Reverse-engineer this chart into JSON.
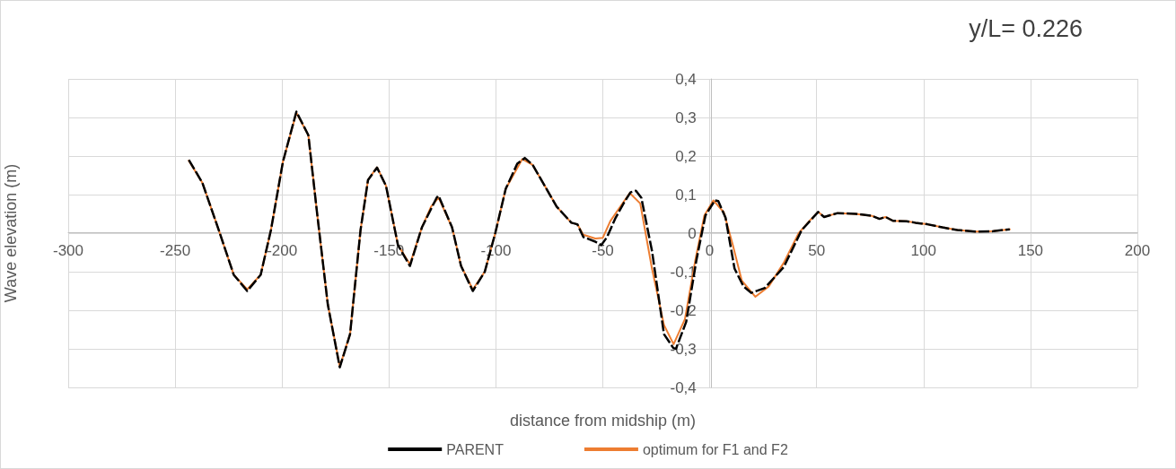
{
  "chart_data": {
    "type": "line",
    "title": "y/L= 0.226",
    "xlabel": "distance from midship (m)",
    "ylabel": "Wave elevation (m)",
    "xlim": [
      -300,
      200
    ],
    "xticks": [
      -300,
      -250,
      -200,
      -150,
      -100,
      -50,
      0,
      50,
      100,
      150,
      200
    ],
    "ylim": [
      -0.4,
      0.4
    ],
    "yticks": [
      {
        "value": -0.4,
        "label": "-0,4"
      },
      {
        "value": -0.3,
        "label": "-0,3"
      },
      {
        "value": -0.2,
        "label": "-0,2"
      },
      {
        "value": -0.1,
        "label": "-0,1"
      },
      {
        "value": 0,
        "label": "0"
      },
      {
        "value": 0.1,
        "label": "0,1"
      },
      {
        "value": 0.2,
        "label": "0,2"
      },
      {
        "value": 0.3,
        "label": "0,3"
      },
      {
        "value": 0.4,
        "label": "0,4"
      }
    ],
    "grid": true,
    "legend": "bottom",
    "marker": "none",
    "series": [
      {
        "name": "PARENT",
        "color": "#000000",
        "line_style": "dashed",
        "x": [
          -243.6,
          -237.3,
          -229.6,
          -222.6,
          -216.3,
          -210,
          -205.2,
          -199.6,
          -193.3,
          -187.7,
          -183.5,
          -178.6,
          -173,
          -168.2,
          -163.3,
          -159.8,
          -155.6,
          -151.4,
          -145.8,
          -140.2,
          -134.6,
          -127.7,
          -126.8,
          -120.5,
          -116.3,
          -110.8,
          -105.2,
          -100.3,
          -95.4,
          -90,
          -86.5,
          -82.8,
          -77.2,
          -71.6,
          -64.7,
          -61.9,
          -59.1,
          -53.5,
          -50.7,
          -48,
          -44,
          -40,
          -37,
          -34.5,
          -32,
          -27,
          -21.4,
          -17,
          -15.8,
          -11,
          -6.2,
          -2,
          2.4,
          4,
          7.4,
          11.6,
          15.8,
          19.4,
          25.8,
          34.6,
          43,
          48.6,
          50.7,
          53.5,
          59.8,
          68.2,
          75.8,
          79.4,
          82.2,
          85.7,
          92,
          96.2,
          101.8,
          108.8,
          115.8,
          124.2,
          132.6,
          140.3
        ],
        "values": [
          0.19,
          0.131,
          0.008,
          -0.108,
          -0.15,
          -0.108,
          0.008,
          0.185,
          0.315,
          0.254,
          0.046,
          -0.185,
          -0.348,
          -0.262,
          0.008,
          0.138,
          0.17,
          0.123,
          -0.031,
          -0.085,
          0.015,
          0.092,
          0.097,
          0.015,
          -0.085,
          -0.15,
          -0.1,
          0,
          0.115,
          0.18,
          0.195,
          0.177,
          0.123,
          0.069,
          0.027,
          0.023,
          -0.01,
          -0.022,
          -0.031,
          -0.01,
          0.04,
          0.08,
          0.106,
          0.11,
          0.092,
          -0.046,
          -0.262,
          -0.298,
          -0.3,
          -0.23,
          -0.069,
          0.046,
          0.085,
          0.083,
          0.04,
          -0.092,
          -0.138,
          -0.155,
          -0.142,
          -0.088,
          0.008,
          0.042,
          0.055,
          0.042,
          0.052,
          0.05,
          0.045,
          0.037,
          0.042,
          0.032,
          0.031,
          0.027,
          0.023,
          0.015,
          0.008,
          0.004,
          0.005,
          0.01
        ]
      },
      {
        "name": "optimum for F1 and F2",
        "color": "#ed7d31",
        "line_style": "solid",
        "x": [
          -243.6,
          -237.3,
          -229.6,
          -222.6,
          -216.3,
          -210,
          -205.2,
          -199.6,
          -193.3,
          -187.7,
          -183.5,
          -178.6,
          -173,
          -168.2,
          -163.3,
          -159.8,
          -155.6,
          -151.4,
          -145.8,
          -140.2,
          -134.6,
          -130.3,
          -126.8,
          -120.5,
          -116.3,
          -110.8,
          -105.2,
          -100.3,
          -95.4,
          -87.7,
          -82.8,
          -77.2,
          -71.6,
          -64.7,
          -61.9,
          -59.1,
          -53.5,
          -50,
          -46.5,
          -42.3,
          -37.4,
          -32.5,
          -27,
          -21.4,
          -16.9,
          -11.6,
          -6.7,
          -2.5,
          1.7,
          6.6,
          10.8,
          15,
          21.3,
          27.6,
          34.6,
          41.6,
          47.2,
          50.7,
          53.5,
          59.8,
          68.2,
          75.8,
          79.4,
          82.2,
          85.7,
          92,
          96.2,
          101.8,
          108.8,
          115.8,
          124.2,
          132.6,
          140.3
        ],
        "values": [
          0.188,
          0.131,
          0.008,
          -0.108,
          -0.146,
          -0.108,
          0.008,
          0.185,
          0.312,
          0.254,
          0.046,
          -0.185,
          -0.346,
          -0.262,
          0.008,
          0.138,
          0.171,
          0.123,
          -0.031,
          -0.081,
          0.015,
          0.069,
          0.092,
          0.015,
          -0.085,
          -0.146,
          -0.1,
          0,
          0.115,
          0.192,
          0.177,
          0.123,
          0.069,
          0.027,
          0.023,
          -0.004,
          -0.014,
          -0.012,
          0.031,
          0.065,
          0.104,
          0.077,
          -0.092,
          -0.238,
          -0.288,
          -0.223,
          -0.069,
          0.046,
          0.085,
          0.054,
          -0.031,
          -0.123,
          -0.165,
          -0.138,
          -0.077,
          0,
          0.035,
          0.055,
          0.042,
          0.052,
          0.05,
          0.045,
          0.037,
          0.042,
          0.032,
          0.031,
          0.027,
          0.023,
          0.015,
          0.008,
          0.004,
          0.005,
          0.01
        ]
      }
    ]
  }
}
